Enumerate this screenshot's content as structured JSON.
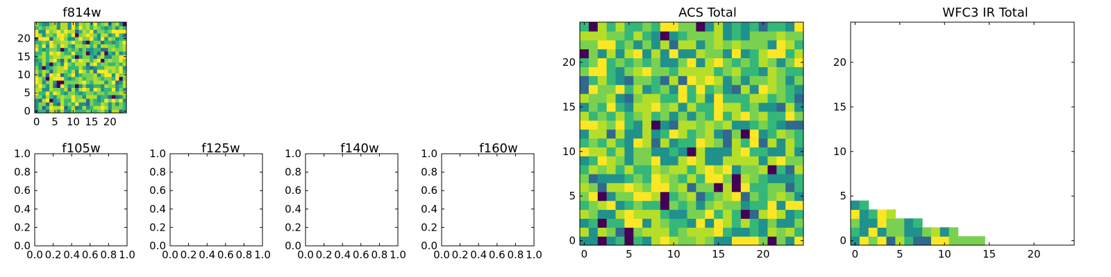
{
  "figure": {
    "panels": [
      {
        "key": "f814w",
        "title": "f814w"
      },
      {
        "key": "f105w",
        "title": "f105w"
      },
      {
        "key": "f125w",
        "title": "f125w"
      },
      {
        "key": "f140w",
        "title": "f140w"
      },
      {
        "key": "f160w",
        "title": "f160w"
      },
      {
        "key": "acs_total",
        "title": "ACS Total"
      },
      {
        "key": "wfc3_ir_total",
        "title": "WFC3 IR Total"
      }
    ]
  },
  "colormap": {
    "name": "viridis",
    "stops": [
      "#440154",
      "#31688e",
      "#21918c",
      "#35b779",
      "#7ad151",
      "#b5de2b",
      "#fde725"
    ]
  },
  "chart_data": [
    {
      "panel": "f814w",
      "type": "heatmap",
      "title": "f814w",
      "grid_size": 25,
      "fill": "random-like pixel noise, mostly green-yellow with a few dark purple/blue pixels",
      "xlim": [
        -0.5,
        24.5
      ],
      "ylim": [
        -0.5,
        24.5
      ],
      "xticks": [
        0,
        5,
        10,
        15,
        20
      ],
      "yticks": [
        0,
        5,
        10,
        15,
        20
      ]
    },
    {
      "panel": "f105w",
      "type": "heatmap",
      "title": "f105w",
      "empty": true,
      "xlim": [
        0,
        1
      ],
      "ylim": [
        0,
        1
      ],
      "xticks": [
        "0.0",
        "0.2",
        "0.4",
        "0.6",
        "0.8",
        "1.0"
      ],
      "yticks": [
        "0.0",
        "0.2",
        "0.4",
        "0.6",
        "0.8",
        "1.0"
      ]
    },
    {
      "panel": "f125w",
      "type": "heatmap",
      "title": "f125w",
      "empty": true,
      "xlim": [
        0,
        1
      ],
      "ylim": [
        0,
        1
      ],
      "xticks": [
        "0.0",
        "0.2",
        "0.4",
        "0.6",
        "0.8",
        "1.0"
      ],
      "yticks": [
        "0.0",
        "0.2",
        "0.4",
        "0.6",
        "0.8",
        "1.0"
      ]
    },
    {
      "panel": "f140w",
      "type": "heatmap",
      "title": "f140w",
      "empty": true,
      "xlim": [
        0,
        1
      ],
      "ylim": [
        0,
        1
      ],
      "xticks": [
        "0.0",
        "0.2",
        "0.4",
        "0.6",
        "0.8",
        "1.0"
      ],
      "yticks": [
        "0.0",
        "0.2",
        "0.4",
        "0.6",
        "0.8",
        "1.0"
      ]
    },
    {
      "panel": "f160w",
      "type": "heatmap",
      "title": "f160w",
      "empty": true,
      "xlim": [
        0,
        1
      ],
      "ylim": [
        0,
        1
      ],
      "xticks": [
        "0.0",
        "0.2",
        "0.4",
        "0.6",
        "0.8",
        "1.0"
      ],
      "yticks": [
        "0.0",
        "0.2",
        "0.4",
        "0.6",
        "0.8",
        "1.0"
      ]
    },
    {
      "panel": "acs_total",
      "type": "heatmap",
      "title": "ACS Total",
      "grid_size": 25,
      "fill": "random-like pixel noise across the full 25x25 grid",
      "dark_pixels": [
        [
          1,
          24
        ],
        [
          9,
          23
        ],
        [
          8,
          13
        ],
        [
          12,
          10
        ],
        [
          17,
          7
        ],
        [
          18,
          12
        ],
        [
          15,
          6
        ],
        [
          9,
          5
        ],
        [
          18,
          3
        ],
        [
          2,
          0
        ],
        [
          21,
          0
        ]
      ],
      "xlim": [
        -0.5,
        24.5
      ],
      "ylim": [
        -0.5,
        24.5
      ],
      "xticks": [
        0,
        5,
        10,
        15,
        20
      ],
      "yticks": [
        0,
        5,
        10,
        15,
        20
      ]
    },
    {
      "panel": "wfc3_ir_total",
      "type": "heatmap",
      "title": "WFC3 IR Total",
      "grid_size": 25,
      "filled_region": "staircase in lower-left: rows 0-4 only, row 0 spans x=0..14, row 4 spans x=0..1",
      "row_extents": [
        {
          "y": 0,
          "x_max": 14
        },
        {
          "y": 1,
          "x_max": 11
        },
        {
          "y": 2,
          "x_max": 7
        },
        {
          "y": 3,
          "x_max": 4
        },
        {
          "y": 4,
          "x_max": 1
        }
      ],
      "xlim": [
        -0.5,
        24.5
      ],
      "ylim": [
        -0.5,
        24.5
      ],
      "xticks": [
        0,
        5,
        10,
        15,
        20
      ],
      "yticks": [
        0,
        5,
        10,
        15,
        20
      ]
    }
  ]
}
